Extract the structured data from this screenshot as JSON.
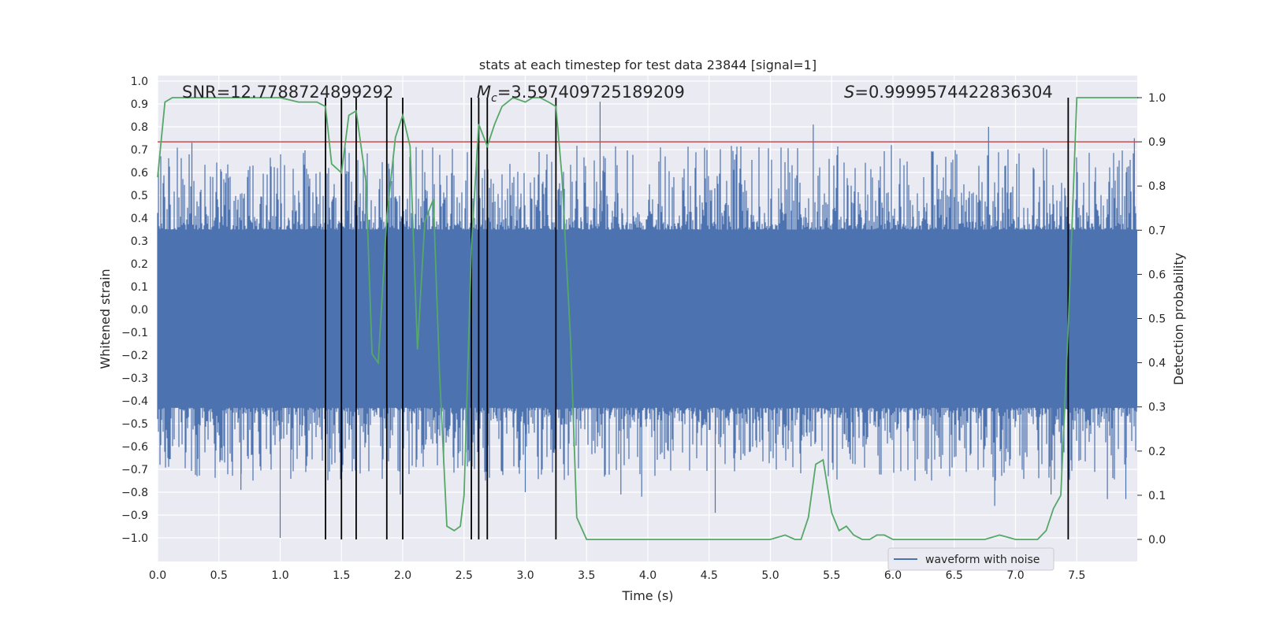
{
  "chart_data": {
    "type": "line",
    "title": "stats at each timestep for test data 23844 [signal=1]",
    "xlabel": "Time (s)",
    "ylabel_left": "Whitened strain",
    "ylabel_right": "Detection probability",
    "xlim": [
      0.0,
      8.0
    ],
    "ylim_left": [
      -1.09,
      1.01
    ],
    "ylim_right": [
      -0.047,
      1.045
    ],
    "x_ticks": [
      "0.0",
      "0.5",
      "1.0",
      "1.5",
      "2.0",
      "2.5",
      "3.0",
      "3.5",
      "4.0",
      "4.5",
      "5.0",
      "5.5",
      "6.0",
      "6.5",
      "7.0",
      "7.5"
    ],
    "y_ticks_left": [
      "1.0",
      "0.9",
      "0.8",
      "0.7",
      "0.6",
      "0.5",
      "0.4",
      "0.3",
      "0.2",
      "0.1",
      "0.0",
      "-0.1",
      "-0.2",
      "-0.3",
      "-0.4",
      "-0.5",
      "-0.6",
      "-0.7",
      "-0.8",
      "-0.9",
      "-1.0"
    ],
    "y_ticks_right": [
      "1.0",
      "0.9",
      "0.8",
      "0.7",
      "0.6",
      "0.5",
      "0.4",
      "0.3",
      "0.2",
      "0.1",
      "0.0"
    ],
    "grid": true,
    "annotations": {
      "snr": "SNR=12.7788724899292",
      "mc_symbol": "M",
      "mc_sub": "c",
      "mc_value": "=3.597409725189209",
      "s_symbol": "S",
      "s_value": "=0.9999574422836304"
    },
    "threshold": {
      "axis": "right",
      "value": 0.9,
      "color": "#c44e52"
    },
    "event_times": [
      1.37,
      1.5,
      1.62,
      1.87,
      2.0,
      2.56,
      2.62,
      2.69,
      3.25,
      7.43
    ],
    "series": [
      {
        "name": "waveform with noise",
        "axis": "left",
        "color": "#4c72b0",
        "style": "dense-noise",
        "core_range": [
          -0.43,
          0.35
        ],
        "typical_spike_range": [
          -0.75,
          0.72
        ],
        "peaks": [
          {
            "x": 0.68,
            "y": -0.79
          },
          {
            "x": 1.0,
            "y": -1.0
          },
          {
            "x": 1.98,
            "y": -0.81
          },
          {
            "x": 3.0,
            "y": -0.8
          },
          {
            "x": 3.61,
            "y": 0.91
          },
          {
            "x": 3.78,
            "y": -0.81
          },
          {
            "x": 3.95,
            "y": -0.82
          },
          {
            "x": 4.55,
            "y": -0.89
          },
          {
            "x": 5.35,
            "y": 0.81
          },
          {
            "x": 6.18,
            "y": -0.75
          },
          {
            "x": 6.83,
            "y": -0.86
          },
          {
            "x": 7.29,
            "y": -0.81
          },
          {
            "x": 7.75,
            "y": -0.83
          },
          {
            "x": 7.9,
            "y": -0.83
          },
          {
            "x": 7.97,
            "y": 0.75
          },
          {
            "x": 0.28,
            "y": 0.73
          },
          {
            "x": 2.62,
            "y": 0.76
          },
          {
            "x": 6.78,
            "y": 0.8
          }
        ]
      },
      {
        "name": "detection probability",
        "axis": "right",
        "color": "#55a868",
        "x": [
          0.0,
          0.06,
          0.12,
          0.25,
          0.5,
          0.75,
          1.0,
          1.15,
          1.3,
          1.37,
          1.42,
          1.5,
          1.56,
          1.62,
          1.7,
          1.75,
          1.8,
          1.87,
          1.94,
          2.0,
          2.06,
          2.12,
          2.18,
          2.25,
          2.3,
          2.36,
          2.42,
          2.47,
          2.5,
          2.56,
          2.62,
          2.69,
          2.75,
          2.81,
          2.9,
          3.0,
          3.06,
          3.12,
          3.19,
          3.25,
          3.3,
          3.37,
          3.42,
          3.5,
          3.6,
          3.7,
          3.8,
          4.0,
          4.2,
          4.4,
          4.6,
          4.8,
          5.0,
          5.12,
          5.2,
          5.25,
          5.31,
          5.37,
          5.43,
          5.5,
          5.56,
          5.62,
          5.68,
          5.75,
          5.81,
          5.87,
          5.93,
          6.0,
          6.1,
          6.25,
          6.5,
          6.75,
          6.87,
          7.0,
          7.12,
          7.18,
          7.25,
          7.31,
          7.37,
          7.43,
          7.5,
          7.56,
          7.62,
          7.75,
          7.9,
          8.0
        ],
        "y": [
          0.82,
          0.99,
          1.0,
          1.0,
          1.0,
          1.0,
          1.0,
          0.99,
          0.99,
          0.98,
          0.85,
          0.83,
          0.96,
          0.97,
          0.81,
          0.42,
          0.4,
          0.73,
          0.91,
          0.96,
          0.89,
          0.43,
          0.72,
          0.77,
          0.38,
          0.03,
          0.02,
          0.03,
          0.1,
          0.66,
          0.94,
          0.89,
          0.94,
          0.98,
          1.0,
          0.99,
          1.0,
          1.0,
          0.99,
          0.98,
          0.82,
          0.45,
          0.05,
          0.0,
          0.0,
          0.0,
          0.0,
          0.0,
          0.0,
          0.0,
          0.0,
          0.0,
          0.0,
          0.01,
          0.0,
          0.0,
          0.05,
          0.17,
          0.18,
          0.06,
          0.02,
          0.03,
          0.01,
          0.0,
          0.0,
          0.01,
          0.01,
          0.0,
          0.0,
          0.0,
          0.0,
          0.0,
          0.01,
          0.0,
          0.0,
          0.0,
          0.02,
          0.07,
          0.1,
          0.48,
          1.0,
          1.0,
          1.0,
          1.0,
          1.0,
          1.0
        ]
      }
    ],
    "legend": {
      "entries": [
        "waveform with noise"
      ],
      "placement": "lower-right"
    }
  }
}
